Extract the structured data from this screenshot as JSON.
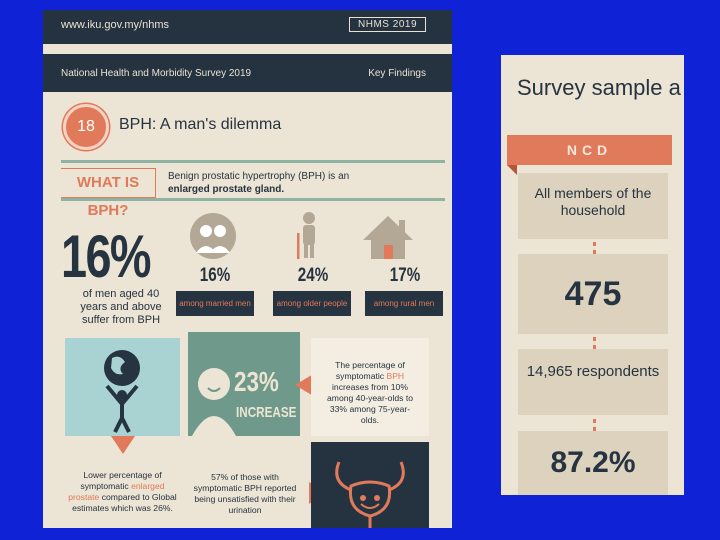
{
  "header": {
    "url": "www.iku.gov.my/nhms",
    "tag": "NHMS 2019"
  },
  "band": {
    "left": "National Health and Morbidity Survey 2019",
    "right": "Key Findings"
  },
  "section": {
    "number": "18",
    "title": "BPH: A man's dilemma"
  },
  "what_is": {
    "label": "WHAT IS BPH?",
    "text_plain": "Benign prostatic hypertrophy (BPH) is an",
    "text_bold": "enlarged prostate gland."
  },
  "headline": {
    "value": "16%",
    "caption": "of men aged 40 years and above suffer from BPH"
  },
  "stats": [
    {
      "value": "16%",
      "label": "among married men",
      "icon": "married-couple-icon"
    },
    {
      "value": "24%",
      "label": "among older people",
      "icon": "older-person-icon"
    },
    {
      "value": "17%",
      "label": "among rural men",
      "icon": "rural-house-icon"
    }
  ],
  "increase": {
    "value": "23%",
    "label": "INCREASE"
  },
  "percent_text": {
    "line1": "The percentage of symptomatic",
    "highlight": "BPH",
    "line2": "increases from 10% among 40-year-olds to 33% among 75-year-olds."
  },
  "lower_text": {
    "pre": "Lower percentage of symptomatic",
    "highlight": "enlarged prostate",
    "post": "compared to Global estimates which was 26%."
  },
  "unsatisfied_text": "57% of those with symptomatic BPH reported being unsatisfied with their urination",
  "survey": {
    "title": "Survey sample a",
    "banner": "NCD",
    "cards": [
      "All members of the household",
      "475",
      "14,965 respondents",
      "87.2%"
    ]
  },
  "colors": {
    "navy": "#253340",
    "coral": "#e07a5a",
    "cream": "#ece4d4",
    "sage": "#8fb3a2",
    "blue_bg": "#0f22d6"
  }
}
